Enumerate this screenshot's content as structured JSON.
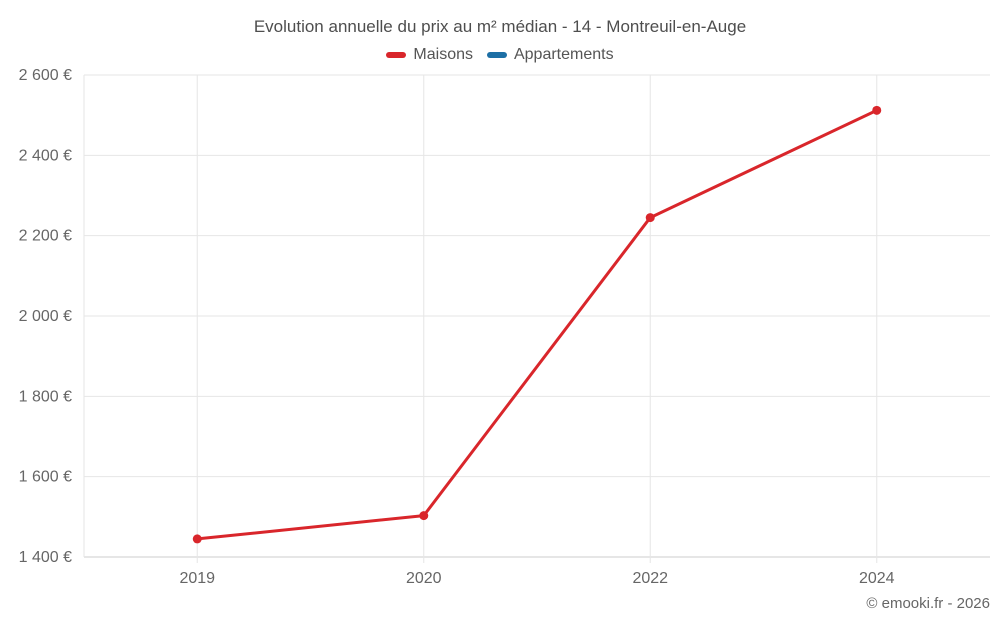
{
  "title": "Evolution annuelle du prix au m² médian - 14 - Montreuil-en-Auge",
  "legend": {
    "items": [
      {
        "label": "Maisons",
        "color": "#d9262b",
        "icon": "maisons-swatch-icon"
      },
      {
        "label": "Appartements",
        "color": "#1d6fa5",
        "icon": "appartements-swatch-icon"
      }
    ]
  },
  "footer": {
    "credit": "© emooki.fr - 2026"
  },
  "colors": {
    "grid": "#e6e6e6",
    "axis": "#cccccc",
    "axis_text": "#666666",
    "title_text": "#4e4e4e",
    "background": "#ffffff"
  },
  "chart_data": {
    "type": "line",
    "title": "Evolution annuelle du prix au m² médian - 14 - Montreuil-en-Auge",
    "categories": [
      "2019",
      "2020",
      "2022",
      "2024"
    ],
    "series": [
      {
        "name": "Maisons",
        "color": "#d9262b",
        "values": [
          1445,
          1503,
          2245,
          2512
        ]
      },
      {
        "name": "Appartements",
        "color": "#1d6fa5",
        "values": []
      }
    ],
    "xlabel": "",
    "ylabel": "",
    "ylim": [
      1400,
      2600
    ],
    "ytick_step": 200,
    "ytick_labels": [
      "1 400 €",
      "1 600 €",
      "1 800 €",
      "2 000 €",
      "2 200 €",
      "2 400 €",
      "2 600 €"
    ],
    "grid": true,
    "x_gridlines": true,
    "legend_position": "top",
    "marker": "circle",
    "currency_suffix": " €"
  }
}
